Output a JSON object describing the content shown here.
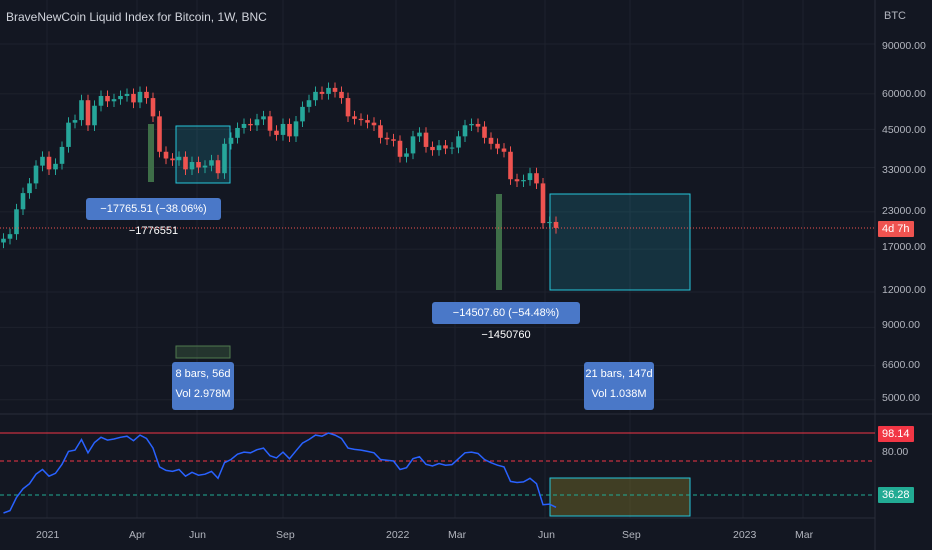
{
  "chart_header": {
    "title": "BraveNewCoin Liquid Index for Bitcoin, 1W, BNC",
    "unit": "BTC"
  },
  "price_axis_labels": [
    "90000.00",
    "60000.00",
    "45000.00",
    "33000.00",
    "23000.00",
    "17000.00",
    "12000.00",
    "9000.00",
    "6600.00",
    "5000.00"
  ],
  "time_axis_labels": [
    "2021",
    "Apr",
    "Jun",
    "Sep",
    "2022",
    "Mar",
    "Jun",
    "Sep",
    "2023",
    "Mar"
  ],
  "countdown_tag": "4d 7h",
  "measure_1": {
    "change": "−17765.51 (−38.06%) −1776551",
    "bars": "8 bars, 56d",
    "volume": "Vol 2.978M"
  },
  "measure_2": {
    "change": "−14507.60 (−54.48%) −1450760",
    "bars": "21 bars, 147d",
    "volume": "Vol 1.038M"
  },
  "indicator": {
    "upper_tag": "98.14",
    "mid_label": "80.00",
    "lower_tag": "36.28"
  },
  "colors": {
    "background": "#131722",
    "up": "#26a69a",
    "down": "#ef5350",
    "indicator_line": "#2962ff",
    "upper_line": "#f23645",
    "lower_line": "#22ab94",
    "label_bg": "#4a78c8"
  },
  "chart_data": {
    "type": "candlestick",
    "title": "BraveNewCoin Liquid Index for Bitcoin, 1W, BNC",
    "y_scale": "log",
    "y_ticks": [
      90000,
      60000,
      45000,
      33000,
      23000,
      17000,
      12000,
      9000,
      6600,
      5000
    ],
    "x_ticks": [
      "2021",
      "Apr",
      "Jun",
      "Sep",
      "2022",
      "Mar",
      "Jun",
      "Sep",
      "2023",
      "Mar"
    ],
    "last_price_approx": 20200,
    "weekly_close_approx": [
      18500,
      19200,
      23500,
      26800,
      29000,
      33500,
      36000,
      32500,
      34000,
      39000,
      47500,
      48500,
      57000,
      46500,
      54500,
      59000,
      56500,
      57500,
      59000,
      60000,
      56000,
      61000,
      58000,
      50000,
      37500,
      35500,
      35000,
      36000,
      32500,
      34500,
      33000,
      33500,
      35000,
      31500,
      40000,
      42000,
      45500,
      47000,
      46500,
      48800,
      50000,
      44500,
      43000,
      47000,
      42500,
      48000,
      54000,
      57000,
      61000,
      60000,
      63000,
      61000,
      58000,
      50000,
      49000,
      48500,
      47500,
      46500,
      42000,
      41500,
      41000,
      36000,
      37000,
      42500,
      43800,
      39000,
      38000,
      39500,
      38500,
      38800,
      42500,
      46500,
      47000,
      46000,
      42000,
      40000,
      38500,
      37500,
      30000,
      29500,
      29800,
      31500,
      29000,
      21000,
      21200,
      20200
    ],
    "indicator_levels": [
      98.14,
      80.0,
      36.28
    ]
  }
}
